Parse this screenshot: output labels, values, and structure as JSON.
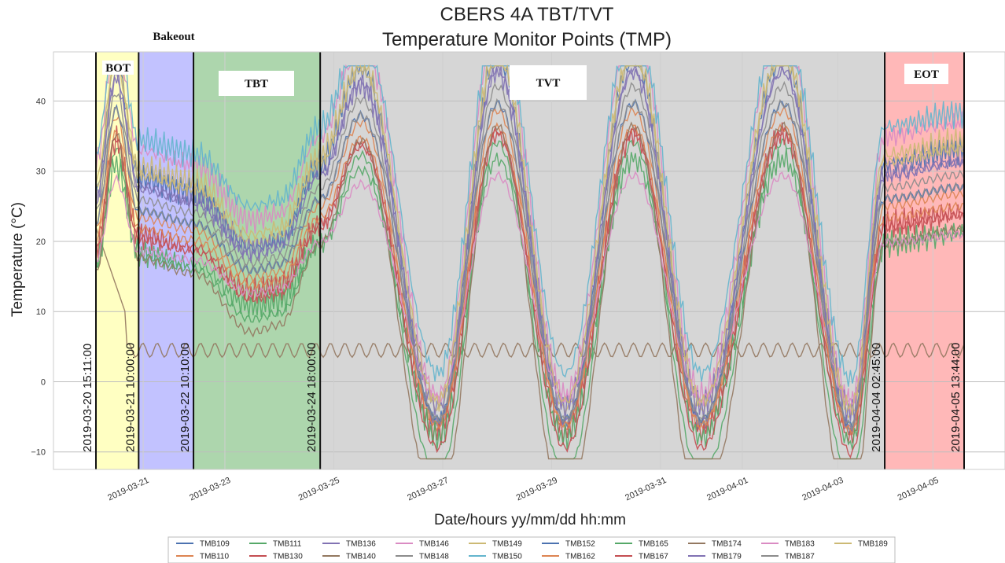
{
  "chart_data": {
    "type": "line",
    "title": "CBERS 4A TBT/TVT",
    "subtitle": "Temperature Monitor Points (TMP)",
    "xlabel": "Date/hours yy/mm/dd hh:mm",
    "ylabel": "Temperature (°C)",
    "ylim": [
      -12.5,
      47
    ],
    "xlim_days": [
      "2019-03-20 15:11:00",
      "2019-04-05 13:44:00"
    ],
    "grid": true,
    "legend_position": "bottom",
    "y_ticks": [
      "−10",
      "0",
      "10",
      "20",
      "30",
      "40"
    ],
    "y_tick_values": [
      -10,
      0,
      10,
      20,
      30,
      40
    ],
    "x_ticks": [
      "2019-03-21",
      "2019-03-23",
      "2019-03-25",
      "2019-03-27",
      "2019-03-29",
      "2019-03-31",
      "2019-04-01",
      "2019-04-03",
      "2019-04-05"
    ],
    "phases": [
      {
        "name": "BOT",
        "label": "BOT",
        "start": "2019-03-20 15:11:00",
        "end": "2019-03-21 10:00:00",
        "color": "#ffff66"
      },
      {
        "name": "Bakeout",
        "label": "Bakeout",
        "start": "2019-03-21 10:00:00",
        "end": "2019-03-22 10:10:00",
        "color": "#6666ff"
      },
      {
        "name": "TBT",
        "label": "TBT",
        "start": "2019-03-22 10:10:00",
        "end": "2019-03-24 18:00:00",
        "color": "#339933"
      },
      {
        "name": "TVT",
        "label": "TVT",
        "start": "2019-03-24 18:00:00",
        "end": "2019-04-04 02:45:00",
        "color": "#999999"
      },
      {
        "name": "EOT",
        "label": "EOT",
        "start": "2019-04-04 02:45:00",
        "end": "2019-04-05 13:44:00",
        "color": "#ff4d4d"
      }
    ],
    "boundary_labels": [
      "2019-03-20 15:11:00",
      "2019-03-21 10:00:00",
      "2019-03-22 10:10:00",
      "2019-03-24 18:00:00",
      "2019-04-04 02:45:00",
      "2019-04-05 13:44:00"
    ],
    "series_pattern_note": "",
    "cycle_peaks": [
      {
        "time": "2019-03-25 12:00",
        "value": 42
      },
      {
        "time": "2019-03-28 00:00",
        "value": 44
      },
      {
        "time": "2019-03-30 12:00",
        "value": 44
      },
      {
        "time": "2019-04-02 06:00",
        "value": 44
      }
    ],
    "cycle_troughs": [
      {
        "time": "2019-03-26 22:00",
        "value": -9
      },
      {
        "time": "2019-03-29 06:00",
        "value": -9
      },
      {
        "time": "2019-03-31 18:00",
        "value": -9
      },
      {
        "time": "2019-04-03 12:00",
        "value": -10
      }
    ],
    "series": [
      {
        "name": "TMB109",
        "color": "#4c72b0",
        "base": 18,
        "amp": 1.0
      },
      {
        "name": "TMB110",
        "color": "#dd8452",
        "base": 14,
        "amp": 0.85
      },
      {
        "name": "TMB111",
        "color": "#55a868",
        "base": 8,
        "amp": 0.9
      },
      {
        "name": "TMB130",
        "color": "#c44e52",
        "base": 12,
        "amp": 0.8
      },
      {
        "name": "TMB136",
        "color": "#8172b3",
        "base": 17,
        "amp": 0.95
      },
      {
        "name": "TMB140",
        "color": "#937860",
        "base": 4.5,
        "amp": 0.05
      },
      {
        "name": "TMB146",
        "color": "#da8bc3",
        "base": 22,
        "amp": 1.0
      },
      {
        "name": "TMB148",
        "color": "#8c8c8c",
        "base": 16,
        "amp": 0.9
      },
      {
        "name": "TMB149",
        "color": "#ccb974",
        "base": 19,
        "amp": 0.95
      },
      {
        "name": "TMB150",
        "color": "#64b5cd",
        "base": 24,
        "amp": 0.95
      },
      {
        "name": "TMB152",
        "color": "#4c72b0",
        "base": 15,
        "amp": 0.85
      },
      {
        "name": "TMB162",
        "color": "#dd8452",
        "base": 13,
        "amp": 0.8
      },
      {
        "name": "TMB165",
        "color": "#55a868",
        "base": 10,
        "amp": 0.75
      },
      {
        "name": "TMB167",
        "color": "#c44e52",
        "base": 11,
        "amp": 0.85
      },
      {
        "name": "TMB174",
        "color": "#937860",
        "base": 6,
        "amp": 1.05
      },
      {
        "name": "TMB179",
        "color": "#8172b3",
        "base": 18,
        "amp": 0.9
      },
      {
        "name": "TMB183",
        "color": "#da8bc3",
        "base": 12,
        "amp": 0.6
      },
      {
        "name": "TMB187",
        "color": "#8c8c8c",
        "base": 15,
        "amp": 0.85
      },
      {
        "name": "TMB189",
        "color": "#ccb974",
        "base": 20,
        "amp": 0.95
      }
    ]
  }
}
